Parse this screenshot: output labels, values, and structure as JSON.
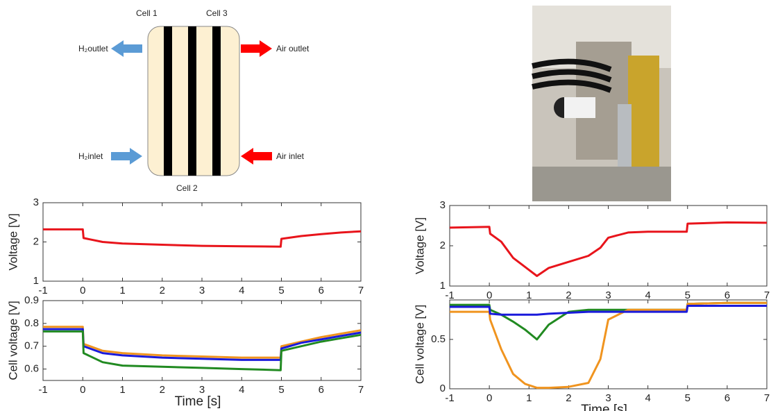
{
  "diagram": {
    "cell_labels": [
      "Cell 1",
      "Cell 3",
      "Cell 2"
    ],
    "h2_outlet": "H₂outlet",
    "h2_inlet": "H₂inlet",
    "air_outlet": "Air outlet",
    "air_inlet": "Air inlet"
  },
  "chart_data": [
    {
      "type": "line",
      "ylabel": "Voltage [V]",
      "xlim": [
        -1,
        7
      ],
      "xticks": [
        -1,
        0,
        1,
        2,
        3,
        4,
        5,
        6,
        7
      ],
      "ylim": [
        1,
        3
      ],
      "yticks": [
        1,
        2,
        3
      ],
      "x": [
        -1,
        0,
        0.02,
        0.5,
        1,
        2,
        3,
        4,
        4.98,
        5,
        5.5,
        6,
        6.5,
        7
      ],
      "series": [
        {
          "color": "#e8141b",
          "values": [
            2.32,
            2.32,
            2.1,
            2.0,
            1.96,
            1.93,
            1.9,
            1.89,
            1.88,
            2.08,
            2.15,
            2.2,
            2.24,
            2.27
          ]
        }
      ]
    },
    {
      "type": "line",
      "ylabel": "Cell voltage [V]",
      "xlabel": "Time [s]",
      "xlim": [
        -1,
        7
      ],
      "xticks": [
        -1,
        0,
        1,
        2,
        3,
        4,
        5,
        6,
        7
      ],
      "ylim": [
        0.55,
        0.9
      ],
      "yticks": [
        0.6,
        0.7,
        0.8,
        0.9
      ],
      "x": [
        -1,
        0,
        0.02,
        0.5,
        1,
        2,
        3,
        4,
        4.98,
        5,
        5.5,
        6,
        6.5,
        7
      ],
      "series": [
        {
          "color": "#f0941f",
          "values": [
            0.785,
            0.785,
            0.71,
            0.68,
            0.67,
            0.66,
            0.655,
            0.65,
            0.65,
            0.7,
            0.72,
            0.74,
            0.755,
            0.77
          ]
        },
        {
          "color": "#1a1adb",
          "values": [
            0.775,
            0.775,
            0.7,
            0.67,
            0.66,
            0.65,
            0.645,
            0.64,
            0.64,
            0.69,
            0.715,
            0.73,
            0.745,
            0.76
          ]
        },
        {
          "color": "#218a21",
          "values": [
            0.765,
            0.765,
            0.67,
            0.63,
            0.615,
            0.61,
            0.605,
            0.6,
            0.595,
            0.68,
            0.7,
            0.72,
            0.735,
            0.75
          ]
        }
      ]
    },
    {
      "type": "line",
      "ylabel": "Voltage [V]",
      "xlim": [
        -1,
        7
      ],
      "xticks": [
        -1,
        0,
        1,
        2,
        3,
        4,
        5,
        6,
        7
      ],
      "ylim": [
        1,
        3
      ],
      "yticks": [
        1,
        2,
        3
      ],
      "x": [
        -1,
        0,
        0.02,
        0.3,
        0.6,
        1,
        1.2,
        1.5,
        2,
        2.5,
        2.8,
        3,
        3.5,
        4,
        4.98,
        5,
        6,
        7
      ],
      "series": [
        {
          "color": "#e8141b",
          "values": [
            2.45,
            2.47,
            2.3,
            2.1,
            1.7,
            1.4,
            1.25,
            1.45,
            1.6,
            1.75,
            1.95,
            2.2,
            2.33,
            2.35,
            2.35,
            2.55,
            2.58,
            2.57
          ]
        }
      ]
    },
    {
      "type": "line",
      "ylabel": "Cell voltage [V]",
      "xlabel": "Time [s]",
      "xlim": [
        -1,
        7
      ],
      "xticks": [
        -1,
        0,
        1,
        2,
        3,
        4,
        5,
        6,
        7
      ],
      "ylim": [
        0,
        0.9
      ],
      "yticks": [
        0,
        0.5
      ],
      "x": [
        -1,
        0,
        0.02,
        0.3,
        0.6,
        0.9,
        1.2,
        1.5,
        2,
        2.5,
        2.8,
        3,
        3.5,
        4,
        4.98,
        5,
        6,
        7
      ],
      "series": [
        {
          "color": "#218a21",
          "values": [
            0.85,
            0.85,
            0.8,
            0.75,
            0.68,
            0.6,
            0.5,
            0.65,
            0.78,
            0.8,
            0.8,
            0.8,
            0.8,
            0.8,
            0.8,
            0.86,
            0.87,
            0.87
          ]
        },
        {
          "color": "#f0941f",
          "values": [
            0.78,
            0.78,
            0.7,
            0.4,
            0.15,
            0.05,
            0.01,
            0.01,
            0.02,
            0.06,
            0.3,
            0.7,
            0.8,
            0.8,
            0.8,
            0.86,
            0.87,
            0.87
          ]
        },
        {
          "color": "#1a1adb",
          "values": [
            0.83,
            0.83,
            0.76,
            0.75,
            0.75,
            0.75,
            0.75,
            0.76,
            0.77,
            0.78,
            0.78,
            0.78,
            0.78,
            0.78,
            0.78,
            0.84,
            0.84,
            0.84
          ]
        }
      ]
    }
  ]
}
